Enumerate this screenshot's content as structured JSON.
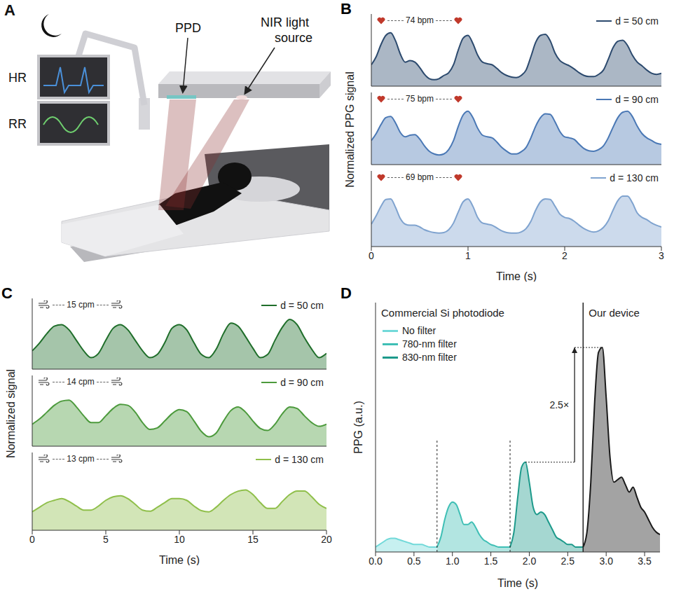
{
  "chart_data": [
    {
      "panel": "B",
      "type": "area",
      "xlabel": "Time (s)",
      "ylabel": "Normalized PPG signal",
      "xlim": [
        0,
        3
      ],
      "xticks": [
        0,
        1,
        2,
        3
      ],
      "ylim": [
        0,
        1.35
      ],
      "x": [
        0,
        0.05,
        0.1,
        0.15,
        0.2,
        0.25,
        0.3,
        0.35,
        0.4,
        0.45,
        0.5,
        0.55,
        0.6,
        0.65,
        0.7,
        0.75,
        0.8,
        0.85,
        0.9,
        0.95,
        1,
        1.05,
        1.1,
        1.15,
        1.2,
        1.25,
        1.3,
        1.35,
        1.4,
        1.45,
        1.5,
        1.55,
        1.6,
        1.65,
        1.7,
        1.75,
        1.8,
        1.85,
        1.9,
        1.95,
        2,
        2.05,
        2.1,
        2.15,
        2.2,
        2.25,
        2.3,
        2.35,
        2.4,
        2.45,
        2.5,
        2.55,
        2.6,
        2.65,
        2.7,
        2.75,
        2.8,
        2.85,
        2.9,
        2.95,
        3
      ],
      "subplots": [
        {
          "series": [
            {
              "name": "d = 50 cm",
              "color": "#2c4a6e",
              "values": [
                0.4,
                0.55,
                0.78,
                0.95,
                1.0,
                0.85,
                0.6,
                0.45,
                0.48,
                0.45,
                0.35,
                0.22,
                0.14,
                0.12,
                0.14,
                0.2,
                0.25,
                0.4,
                0.68,
                0.9,
                0.95,
                0.8,
                0.58,
                0.45,
                0.42,
                0.4,
                0.33,
                0.25,
                0.2,
                0.17,
                0.16,
                0.2,
                0.3,
                0.55,
                0.82,
                0.95,
                0.97,
                0.85,
                0.62,
                0.48,
                0.42,
                0.38,
                0.32,
                0.25,
                0.2,
                0.18,
                0.18,
                0.22,
                0.3,
                0.5,
                0.72,
                0.84,
                0.86,
                0.76,
                0.58,
                0.45,
                0.38,
                0.3,
                0.24,
                0.22,
                0.24
              ]
            }
          ],
          "legend": "upper right",
          "annotations": [
            "74 bpm"
          ],
          "tick_labels": false
        },
        {
          "series": [
            {
              "name": "d = 90 cm",
              "color": "#4a78b5",
              "values": [
                0.45,
                0.58,
                0.75,
                0.88,
                0.9,
                0.78,
                0.6,
                0.52,
                0.55,
                0.56,
                0.48,
                0.35,
                0.25,
                0.2,
                0.18,
                0.2,
                0.28,
                0.45,
                0.72,
                0.93,
                1.0,
                0.88,
                0.68,
                0.55,
                0.52,
                0.5,
                0.42,
                0.32,
                0.25,
                0.2,
                0.2,
                0.24,
                0.32,
                0.5,
                0.72,
                0.88,
                0.95,
                0.94,
                0.8,
                0.62,
                0.52,
                0.5,
                0.47,
                0.38,
                0.3,
                0.26,
                0.25,
                0.28,
                0.35,
                0.5,
                0.7,
                0.88,
                0.98,
                1.0,
                0.9,
                0.72,
                0.58,
                0.5,
                0.45,
                0.4,
                0.38
              ]
            }
          ],
          "legend": "upper right",
          "annotations": [
            "75 bpm"
          ],
          "tick_labels": false
        },
        {
          "series": [
            {
              "name": "d = 130 cm",
              "color": "#7fa3cf",
              "values": [
                0.4,
                0.55,
                0.72,
                0.84,
                0.85,
                0.7,
                0.5,
                0.4,
                0.38,
                0.38,
                0.35,
                0.3,
                0.27,
                0.25,
                0.24,
                0.25,
                0.3,
                0.42,
                0.62,
                0.8,
                0.85,
                0.72,
                0.52,
                0.42,
                0.4,
                0.38,
                0.33,
                0.28,
                0.25,
                0.24,
                0.24,
                0.26,
                0.32,
                0.45,
                0.65,
                0.8,
                0.85,
                0.84,
                0.72,
                0.58,
                0.52,
                0.5,
                0.45,
                0.38,
                0.32,
                0.28,
                0.26,
                0.28,
                0.34,
                0.46,
                0.65,
                0.82,
                0.9,
                0.9,
                0.78,
                0.6,
                0.52,
                0.48,
                0.42,
                0.38,
                0.35
              ]
            }
          ],
          "legend": "upper right",
          "annotations": [
            "69 bpm"
          ],
          "tick_labels": "x"
        }
      ]
    },
    {
      "panel": "C",
      "type": "area",
      "xlabel": "Time (s)",
      "ylabel": "Normalized signal",
      "xlim": [
        0,
        20
      ],
      "xticks": [
        0,
        5,
        10,
        15,
        20
      ],
      "ylim": [
        0,
        1.35
      ],
      "x": [
        0,
        0.5,
        1,
        1.5,
        2,
        2.5,
        3,
        3.5,
        4,
        4.5,
        5,
        5.5,
        6,
        6.5,
        7,
        7.5,
        8,
        8.5,
        9,
        9.5,
        10,
        10.5,
        11,
        11.5,
        12,
        12.5,
        13,
        13.5,
        14,
        14.5,
        15,
        15.5,
        16,
        16.5,
        17,
        17.5,
        18,
        18.5,
        19,
        19.5,
        20
      ],
      "subplots": [
        {
          "series": [
            {
              "name": "d = 50 cm",
              "color": "#1f6e2a",
              "values": [
                0.35,
                0.5,
                0.68,
                0.82,
                0.85,
                0.75,
                0.55,
                0.35,
                0.22,
                0.3,
                0.55,
                0.78,
                0.85,
                0.75,
                0.55,
                0.35,
                0.22,
                0.28,
                0.5,
                0.78,
                0.85,
                0.75,
                0.5,
                0.28,
                0.22,
                0.38,
                0.68,
                0.88,
                0.82,
                0.62,
                0.4,
                0.22,
                0.28,
                0.55,
                0.8,
                0.95,
                0.85,
                0.6,
                0.38,
                0.22,
                0.3
              ]
            }
          ],
          "legend": "upper right",
          "annotations": [
            "15 cpm"
          ],
          "tick_labels": false
        },
        {
          "series": [
            {
              "name": "d = 90 cm",
              "color": "#4c9a3c",
              "values": [
                0.42,
                0.52,
                0.65,
                0.78,
                0.86,
                0.88,
                0.75,
                0.58,
                0.45,
                0.45,
                0.58,
                0.72,
                0.8,
                0.78,
                0.65,
                0.45,
                0.32,
                0.35,
                0.48,
                0.62,
                0.7,
                0.66,
                0.48,
                0.28,
                0.18,
                0.25,
                0.48,
                0.68,
                0.75,
                0.65,
                0.48,
                0.34,
                0.3,
                0.42,
                0.62,
                0.75,
                0.72,
                0.58,
                0.45,
                0.38,
                0.42
              ]
            }
          ],
          "legend": "upper right",
          "annotations": [
            "14 cpm"
          ],
          "tick_labels": false
        },
        {
          "series": [
            {
              "name": "d = 130 cm",
              "color": "#8fbf4a",
              "values": [
                0.32,
                0.4,
                0.48,
                0.52,
                0.55,
                0.5,
                0.42,
                0.35,
                0.35,
                0.42,
                0.52,
                0.58,
                0.6,
                0.55,
                0.45,
                0.35,
                0.33,
                0.4,
                0.48,
                0.55,
                0.55,
                0.52,
                0.42,
                0.34,
                0.32,
                0.4,
                0.52,
                0.62,
                0.68,
                0.7,
                0.62,
                0.48,
                0.38,
                0.38,
                0.5,
                0.62,
                0.68,
                0.68,
                0.58,
                0.45,
                0.38
              ]
            }
          ],
          "legend": "upper right",
          "annotations": [
            "13 cpm"
          ],
          "tick_labels": "x"
        }
      ]
    },
    {
      "panel": "D",
      "type": "area",
      "subtitle": "Commercial Si photodiode",
      "xlabel": "Time (s)",
      "ylabel": "PPG (a.u.)",
      "xlim": [
        0,
        3.7
      ],
      "xticks": [
        {
          "value": 0,
          "label": "0.0"
        },
        {
          "value": 0.5,
          "label": "0.5"
        },
        {
          "value": 1,
          "label": "1.0"
        },
        {
          "value": 1.5,
          "label": "1.5"
        },
        {
          "value": 2,
          "label": "2.0"
        },
        {
          "value": 2.5,
          "label": "2.5"
        },
        {
          "value": 3,
          "label": "3.0"
        },
        {
          "value": 3.5,
          "label": "3.5"
        }
      ],
      "ylim": [
        0,
        1
      ],
      "legend": "upper left",
      "annotations": [
        "2.5×"
      ],
      "tick_labels": "x",
      "series": [
        {
          "name": "No filter",
          "color": "#72d9d9",
          "x": [
            0,
            0.05,
            0.1,
            0.15,
            0.2,
            0.25,
            0.3,
            0.35,
            0.4,
            0.45,
            0.5,
            0.55,
            0.6,
            0.65,
            0.7,
            0.75,
            0.8
          ],
          "values": [
            0.02,
            0.03,
            0.04,
            0.05,
            0.055,
            0.055,
            0.05,
            0.045,
            0.04,
            0.035,
            0.03,
            0.03,
            0.03,
            0.025,
            0.02,
            0.02,
            0.02
          ]
        },
        {
          "name": "780-nm filter",
          "color": "#3fbfb5",
          "x": [
            0.8,
            0.85,
            0.9,
            0.95,
            1,
            1.05,
            1.1,
            1.15,
            1.2,
            1.25,
            1.3,
            1.35,
            1.4,
            1.45,
            1.5,
            1.55,
            1.6,
            1.65,
            1.7,
            1.75
          ],
          "values": [
            0.02,
            0.06,
            0.13,
            0.18,
            0.2,
            0.19,
            0.15,
            0.11,
            0.11,
            0.12,
            0.1,
            0.07,
            0.05,
            0.04,
            0.03,
            0.025,
            0.02,
            0.02,
            0.02,
            0.02
          ]
        },
        {
          "name": "830-nm filter",
          "color": "#1d9a8b",
          "x": [
            1.75,
            1.8,
            1.85,
            1.9,
            1.95,
            2,
            2.05,
            2.1,
            2.15,
            2.2,
            2.25,
            2.3,
            2.35,
            2.4,
            2.45,
            2.5,
            2.55,
            2.6,
            2.65,
            2.7
          ],
          "values": [
            0.02,
            0.08,
            0.22,
            0.34,
            0.36,
            0.28,
            0.18,
            0.15,
            0.16,
            0.15,
            0.12,
            0.09,
            0.06,
            0.05,
            0.04,
            0.03,
            0.03,
            0.02,
            0.02,
            0.02
          ]
        },
        {
          "name": "Our device",
          "color": "#1a1a1a",
          "x": [
            2.7,
            2.75,
            2.8,
            2.85,
            2.9,
            2.95,
            3,
            3.05,
            3.1,
            3.15,
            3.2,
            3.25,
            3.3,
            3.35,
            3.4,
            3.45,
            3.5,
            3.55,
            3.6,
            3.65,
            3.7
          ],
          "values": [
            0.02,
            0.08,
            0.28,
            0.6,
            0.8,
            0.82,
            0.62,
            0.38,
            0.28,
            0.29,
            0.3,
            0.27,
            0.24,
            0.26,
            0.22,
            0.18,
            0.16,
            0.13,
            0.1,
            0.08,
            0.07
          ]
        }
      ]
    }
  ],
  "diagram": {
    "panel": "A",
    "labels": {
      "ppd": "PPD",
      "light": "NIR light source",
      "hr": "HR",
      "rr": "RR"
    }
  }
}
